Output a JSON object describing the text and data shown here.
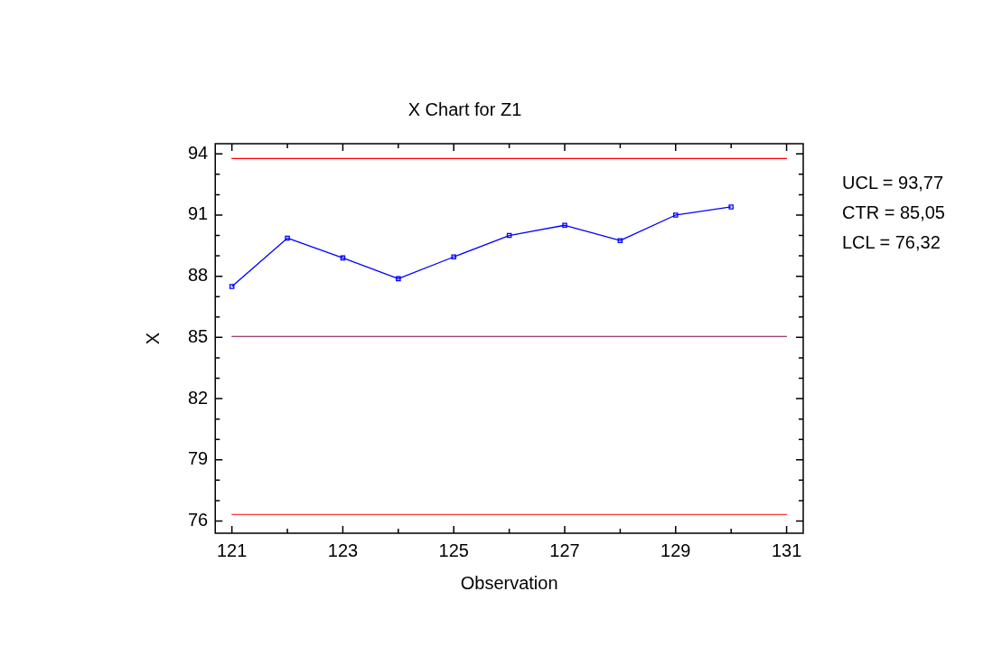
{
  "chart_data": {
    "type": "line",
    "title": "X Chart for Z1",
    "xlabel": "Observation",
    "ylabel": "X",
    "x": [
      121,
      122,
      123,
      124,
      125,
      126,
      127,
      128,
      129,
      130
    ],
    "series": [
      {
        "color": "#0000ff",
        "values": [
          87.5,
          89.87,
          88.9,
          87.88,
          88.95,
          90.0,
          90.5,
          89.75,
          91.0,
          91.4
        ]
      }
    ],
    "marker": "square",
    "line_style": "solid",
    "legend": false,
    "grid": false,
    "xlim": [
      120.7,
      131.3
    ],
    "xticks": [
      121,
      {
        "value": 122,
        "label": null
      },
      123,
      {
        "value": 124,
        "label": null
      },
      125,
      {
        "value": 126,
        "label": null
      },
      127,
      {
        "value": 128,
        "label": null
      },
      129,
      {
        "value": 130,
        "label": null
      },
      131
    ],
    "ylim": [
      75.4,
      94.5
    ],
    "yticks": [
      76,
      {
        "value": 77,
        "label": null
      },
      {
        "value": 78,
        "label": null
      },
      79,
      {
        "value": 80,
        "label": null
      },
      {
        "value": 81,
        "label": null
      },
      82,
      {
        "value": 83,
        "label": null
      },
      {
        "value": 84,
        "label": null
      },
      85,
      {
        "value": 86,
        "label": null
      },
      {
        "value": 87,
        "label": null
      },
      88,
      {
        "value": 89,
        "label": null
      },
      {
        "value": 90,
        "label": null
      },
      91,
      {
        "value": 92,
        "label": null
      },
      {
        "value": 93,
        "label": null
      },
      94
    ],
    "ref_lines": [
      {
        "axis": "y",
        "value": 93.77,
        "color": "#ff0000"
      },
      {
        "axis": "y",
        "value": 85.05,
        "color": "#800040"
      },
      {
        "axis": "y",
        "value": 76.32,
        "color": "#ff0000"
      }
    ],
    "annotations": [
      "UCL = 93,77",
      "CTR = 85,05",
      "LCL = 76,32"
    ]
  }
}
